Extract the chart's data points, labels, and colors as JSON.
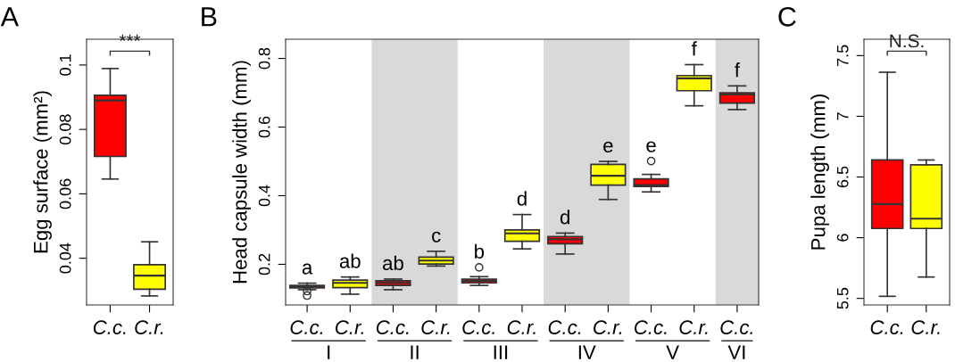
{
  "chart_data": [
    {
      "type": "box",
      "title": "A",
      "ylabel": "Egg surface (mm²)",
      "categories": [
        "C.c.",
        "C.r."
      ],
      "colors": [
        "#ff0000",
        "#ffff00"
      ],
      "boxes": [
        {
          "low": 0.0646,
          "q1": 0.0716,
          "median": 0.089,
          "q3": 0.0906,
          "high": 0.0989
        },
        {
          "low": 0.0283,
          "q1": 0.0304,
          "median": 0.0346,
          "q3": 0.038,
          "high": 0.0451
        }
      ],
      "ylim": [
        0.0255,
        0.108
      ],
      "yticks": [
        0.04,
        0.06,
        0.08,
        0.1
      ],
      "annotations": [
        "***"
      ]
    },
    {
      "type": "box",
      "title": "B",
      "ylabel": "Head capsule width (mm)",
      "categories": [
        "C.c.",
        "C.r.",
        "C.c.",
        "C.r.",
        "C.c.",
        "C.r.",
        "C.c.",
        "C.r.",
        "C.c.",
        "C.r.",
        "C.c."
      ],
      "colors": [
        "#ff0000",
        "#ffff00",
        "#ff0000",
        "#ffff00",
        "#ff0000",
        "#ffff00",
        "#ff0000",
        "#ffff00",
        "#ff0000",
        "#ffff00",
        "#ff0000"
      ],
      "boxes": [
        {
          "low": 0.126,
          "q1": 0.131,
          "median": 0.135,
          "q3": 0.1385,
          "high": 0.145,
          "outliers": [
            0.122,
            0.109
          ]
        },
        {
          "low": 0.113,
          "q1": 0.132,
          "median": 0.146,
          "q3": 0.154,
          "high": 0.163
        },
        {
          "low": 0.126,
          "q1": 0.1385,
          "median": 0.146,
          "q3": 0.152,
          "high": 0.157
        },
        {
          "low": 0.195,
          "q1": 0.201,
          "median": 0.211,
          "q3": 0.221,
          "high": 0.238
        },
        {
          "low": 0.1385,
          "q1": 0.146,
          "median": 0.152,
          "q3": 0.157,
          "high": 0.164,
          "outliers": [
            0.191
          ]
        },
        {
          "low": 0.245,
          "q1": 0.267,
          "median": 0.29,
          "q3": 0.3,
          "high": 0.345
        },
        {
          "low": 0.23,
          "q1": 0.26,
          "median": 0.273,
          "q3": 0.281,
          "high": 0.291
        },
        {
          "low": 0.389,
          "q1": 0.431,
          "median": 0.458,
          "q3": 0.491,
          "high": 0.5
        },
        {
          "low": 0.411,
          "q1": 0.427,
          "median": 0.431,
          "q3": 0.449,
          "high": 0.462,
          "outliers": [
            0.501
          ]
        },
        {
          "low": 0.662,
          "q1": 0.706,
          "median": 0.742,
          "q3": 0.75,
          "high": 0.782
        },
        {
          "low": 0.651,
          "q1": 0.67,
          "median": 0.695,
          "q3": 0.7,
          "high": 0.72
        }
      ],
      "ylim": [
        0.0816,
        0.856
      ],
      "yticks": [
        0.2,
        0.4,
        0.6,
        0.8
      ],
      "annotations": [
        "a",
        "ab",
        "ab",
        "c",
        "b",
        "d",
        "d",
        "e",
        "e",
        "f",
        "f",
        "I",
        "II",
        "III",
        "IV",
        "V",
        "VI"
      ]
    },
    {
      "type": "box",
      "title": "C",
      "ylabel": "Pupa length (mm)",
      "categories": [
        "C.c.",
        "C.r."
      ],
      "colors": [
        "#ff0000",
        "#ffff00"
      ],
      "boxes": [
        {
          "low": 5.517,
          "q1": 6.076,
          "median": 6.277,
          "q3": 6.64,
          "high": 7.363
        },
        {
          "low": 5.676,
          "q1": 6.076,
          "median": 6.157,
          "q3": 6.6,
          "high": 6.64
        }
      ],
      "ylim": [
        5.446,
        7.635
      ],
      "yticks": [
        5.5,
        6,
        6.5,
        7,
        7.5
      ],
      "annotations": [
        "N.S."
      ]
    }
  ]
}
